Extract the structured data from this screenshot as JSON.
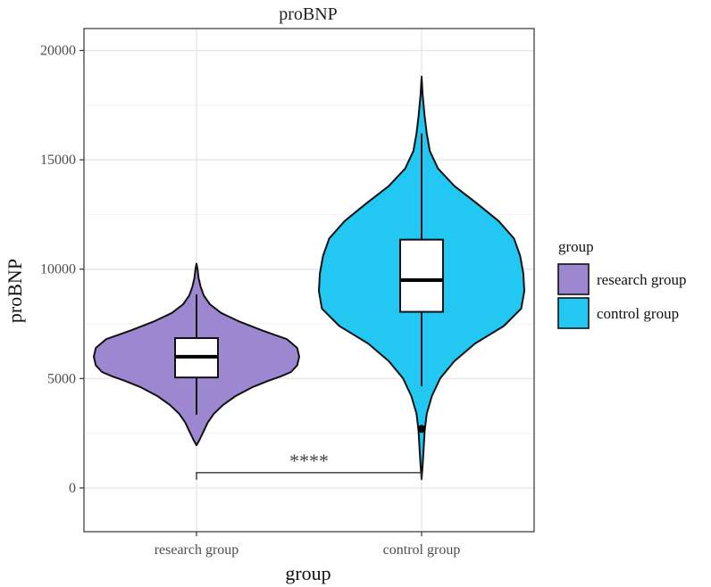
{
  "chart_data": {
    "type": "violin",
    "title": "proBNP",
    "xlabel": "group",
    "ylabel": "proBNP",
    "categories": [
      "research group",
      "control group"
    ],
    "ylim": [
      -2000,
      21000
    ],
    "yticks": [
      0,
      5000,
      10000,
      15000,
      20000
    ],
    "ytick_labels": [
      "0",
      "5000",
      "10000",
      "15000",
      "20000"
    ],
    "grid": true,
    "legend": {
      "title": "group",
      "placement": "right",
      "entries": [
        "research group",
        "control group"
      ]
    },
    "series": [
      {
        "name": "research group",
        "color": "#9e87d1",
        "box": {
          "whisker_low": 3350,
          "q1": 5050,
          "median": 6000,
          "q3": 6850,
          "whisker_high": 8850
        },
        "outliers": [],
        "violin_min": 1950,
        "violin_max": 10250,
        "density": [
          [
            1950,
            0.0
          ],
          [
            2200,
            0.03
          ],
          [
            2600,
            0.07
          ],
          [
            3000,
            0.11
          ],
          [
            3400,
            0.17
          ],
          [
            3800,
            0.26
          ],
          [
            4200,
            0.38
          ],
          [
            4600,
            0.54
          ],
          [
            4900,
            0.7
          ],
          [
            5100,
            0.82
          ],
          [
            5300,
            0.92
          ],
          [
            5600,
            0.98
          ],
          [
            6000,
            1.0
          ],
          [
            6400,
            0.98
          ],
          [
            6800,
            0.88
          ],
          [
            7200,
            0.64
          ],
          [
            7600,
            0.42
          ],
          [
            8000,
            0.24
          ],
          [
            8400,
            0.13
          ],
          [
            8800,
            0.07
          ],
          [
            9200,
            0.04
          ],
          [
            9600,
            0.02
          ],
          [
            10000,
            0.01
          ],
          [
            10250,
            0.0
          ]
        ]
      },
      {
        "name": "control group",
        "color": "#22c7f2",
        "box": {
          "whisker_low": 4650,
          "q1": 8050,
          "median": 9500,
          "q3": 11350,
          "whisker_high": 16200
        },
        "outliers": [
          2700
        ],
        "violin_min": 400,
        "violin_max": 18800,
        "density": [
          [
            400,
            0.0
          ],
          [
            1000,
            0.01
          ],
          [
            1800,
            0.02
          ],
          [
            2600,
            0.03
          ],
          [
            3400,
            0.05
          ],
          [
            4200,
            0.1
          ],
          [
            5000,
            0.18
          ],
          [
            5800,
            0.32
          ],
          [
            6600,
            0.52
          ],
          [
            7400,
            0.8
          ],
          [
            8200,
            0.97
          ],
          [
            9000,
            1.0
          ],
          [
            9800,
            0.99
          ],
          [
            10600,
            0.96
          ],
          [
            11400,
            0.9
          ],
          [
            12200,
            0.75
          ],
          [
            13000,
            0.54
          ],
          [
            13800,
            0.32
          ],
          [
            14600,
            0.16
          ],
          [
            15400,
            0.08
          ],
          [
            16200,
            0.05
          ],
          [
            17000,
            0.03
          ],
          [
            18000,
            0.01
          ],
          [
            18800,
            0.0
          ]
        ]
      }
    ],
    "annotations": [
      {
        "text": "****",
        "from": "research group",
        "to": "control group",
        "y": 700
      }
    ]
  }
}
